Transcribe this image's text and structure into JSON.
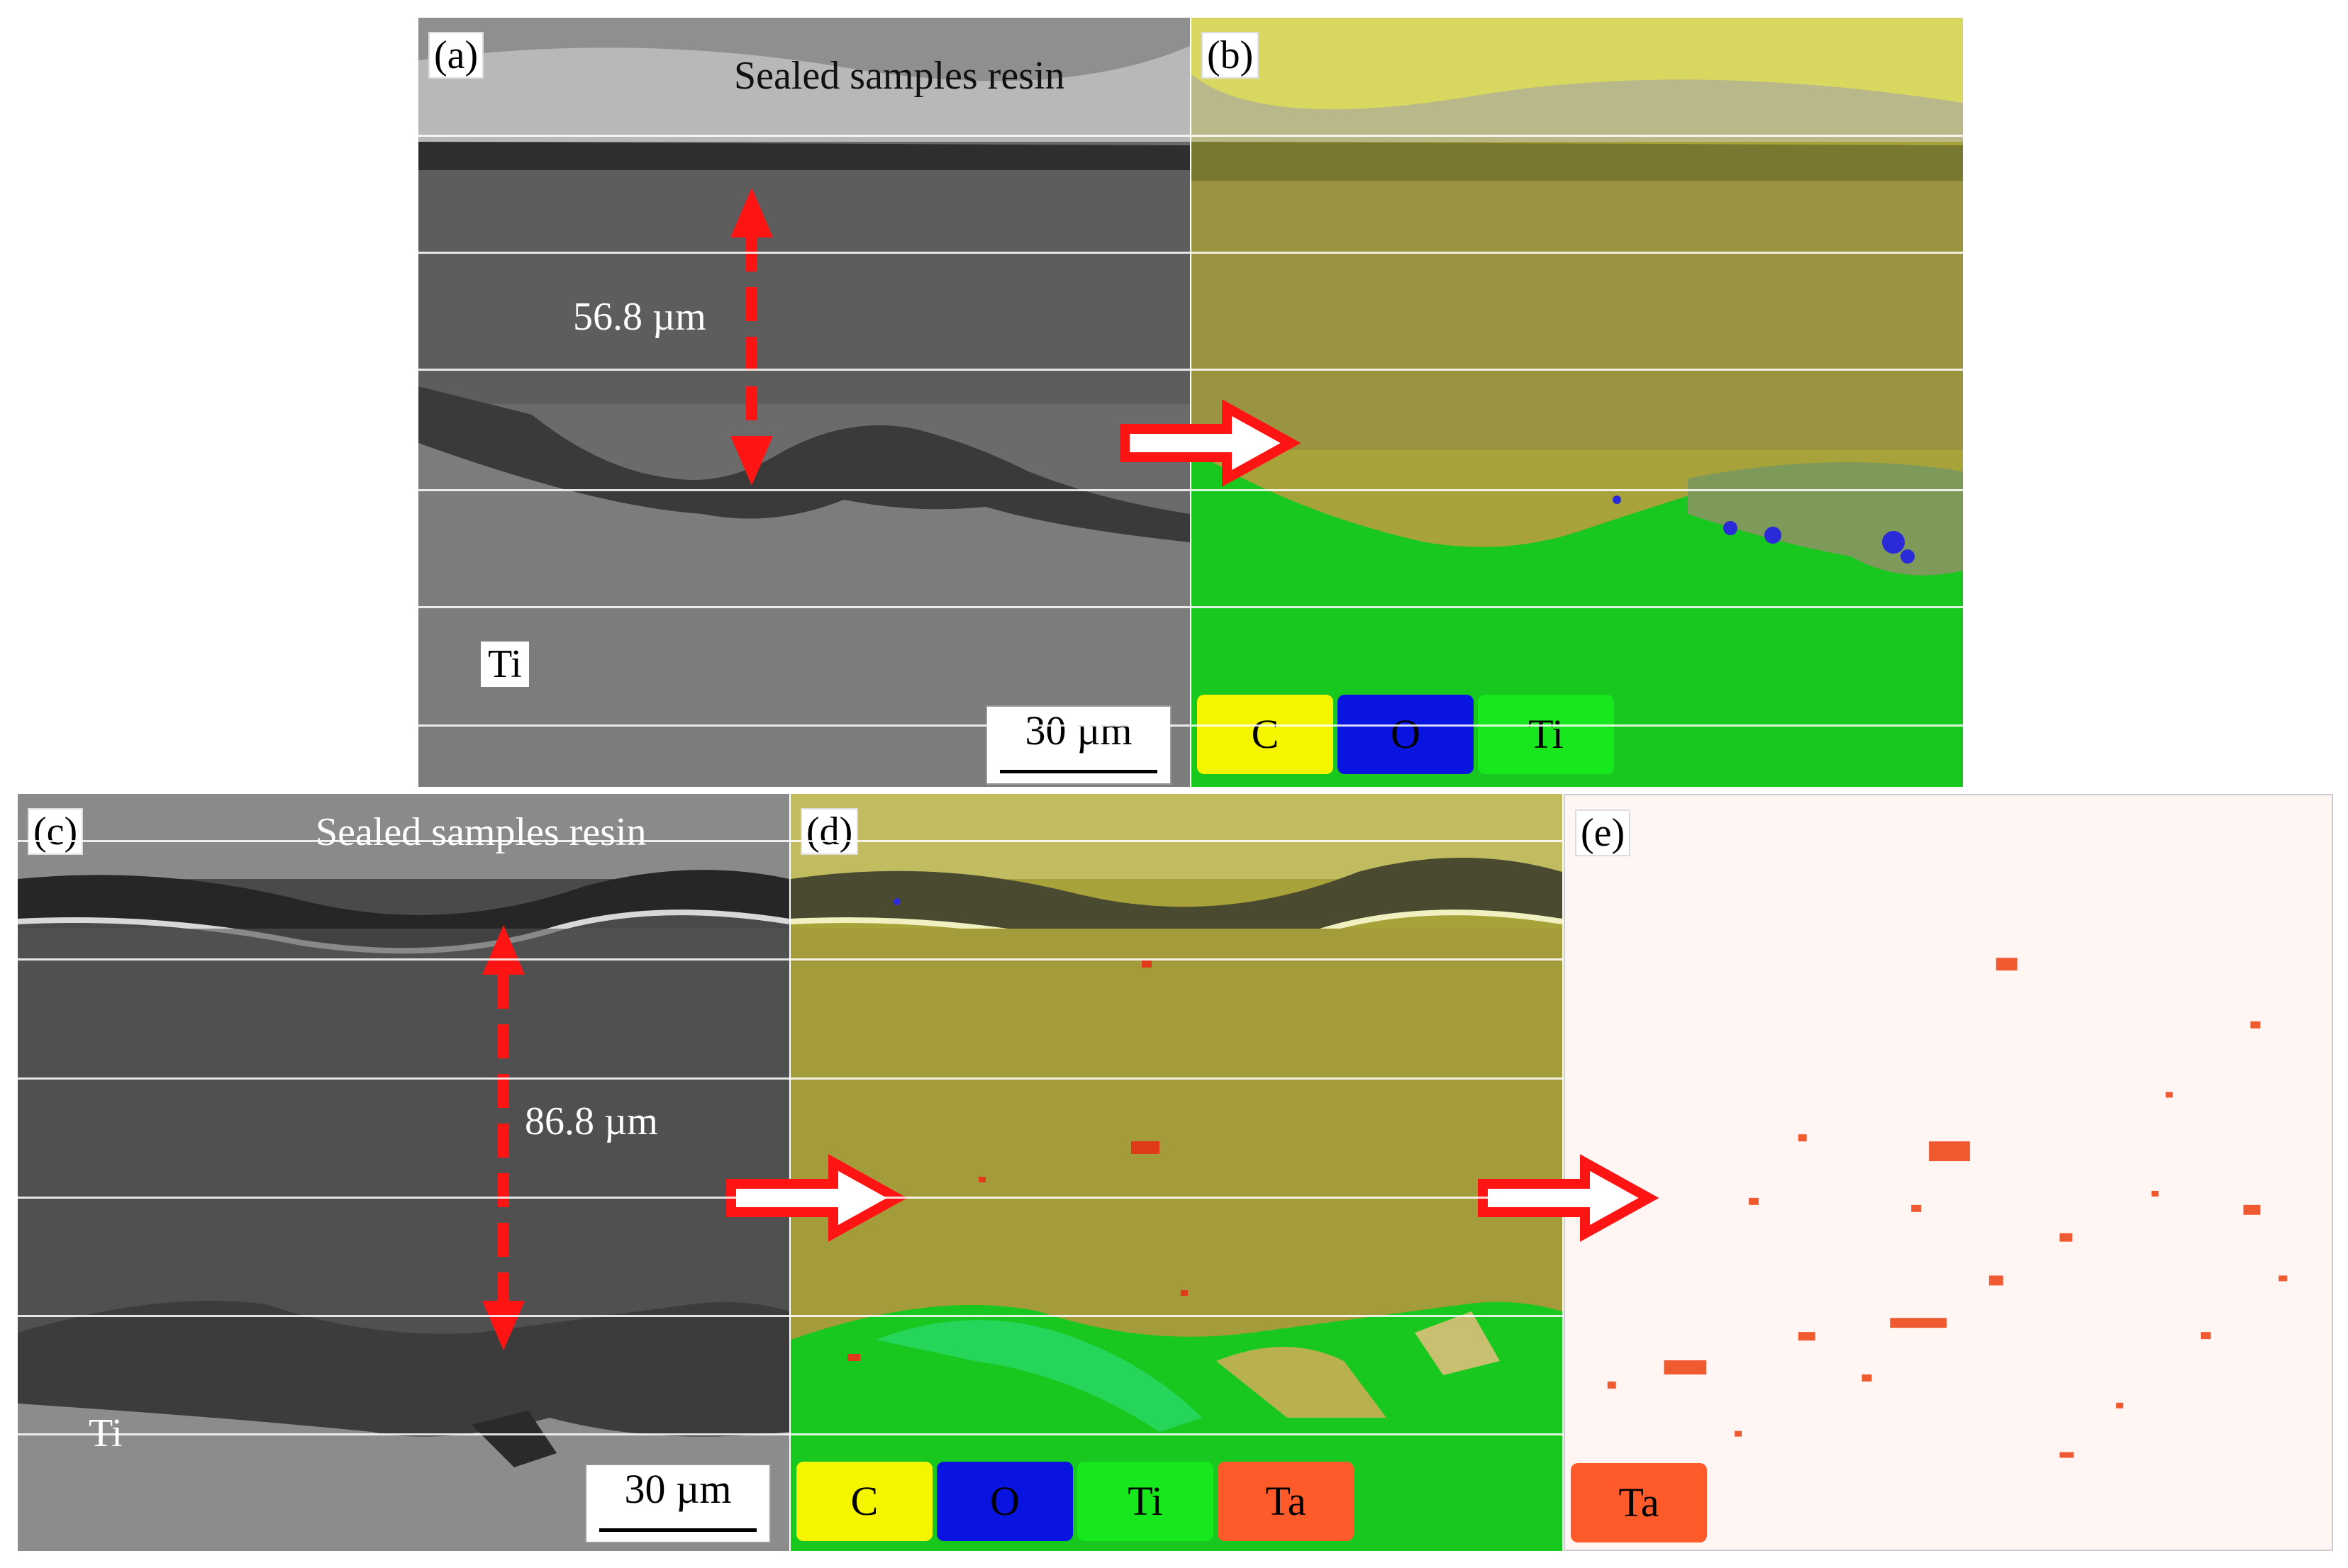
{
  "panels": {
    "a": {
      "label": "(a)",
      "resin_text": "Sealed samples resin",
      "thickness": "56.8 µm",
      "substrate": "Ti",
      "scale": "30 µm"
    },
    "b": {
      "label": "(b)",
      "legend": [
        {
          "name": "C",
          "color": "#f5f500"
        },
        {
          "name": "O",
          "color": "#0a14e0"
        },
        {
          "name": "Ti",
          "color": "#17e81e"
        }
      ]
    },
    "c": {
      "label": "(c)",
      "resin_text": "Sealed samples resin",
      "thickness": "86.8 µm",
      "substrate": "Ti",
      "scale": "30 µm"
    },
    "d": {
      "label": "(d)",
      "legend": [
        {
          "name": "C",
          "color": "#f5f500"
        },
        {
          "name": "O",
          "color": "#0a14e0"
        },
        {
          "name": "Ti",
          "color": "#17e81e"
        },
        {
          "name": "Ta",
          "color": "#ff5a2a"
        }
      ]
    },
    "e": {
      "label": "(e)",
      "legend": [
        {
          "name": "Ta",
          "color": "#ff5a2a"
        }
      ]
    }
  },
  "colors": {
    "arrow": "#ff1414",
    "sem_dark": "#4a4a4a",
    "sem_mid": "#6a6a6a",
    "sem_light": "#8a8a8a",
    "map_yellow": "#a8a23a",
    "map_green": "#19c81e"
  }
}
